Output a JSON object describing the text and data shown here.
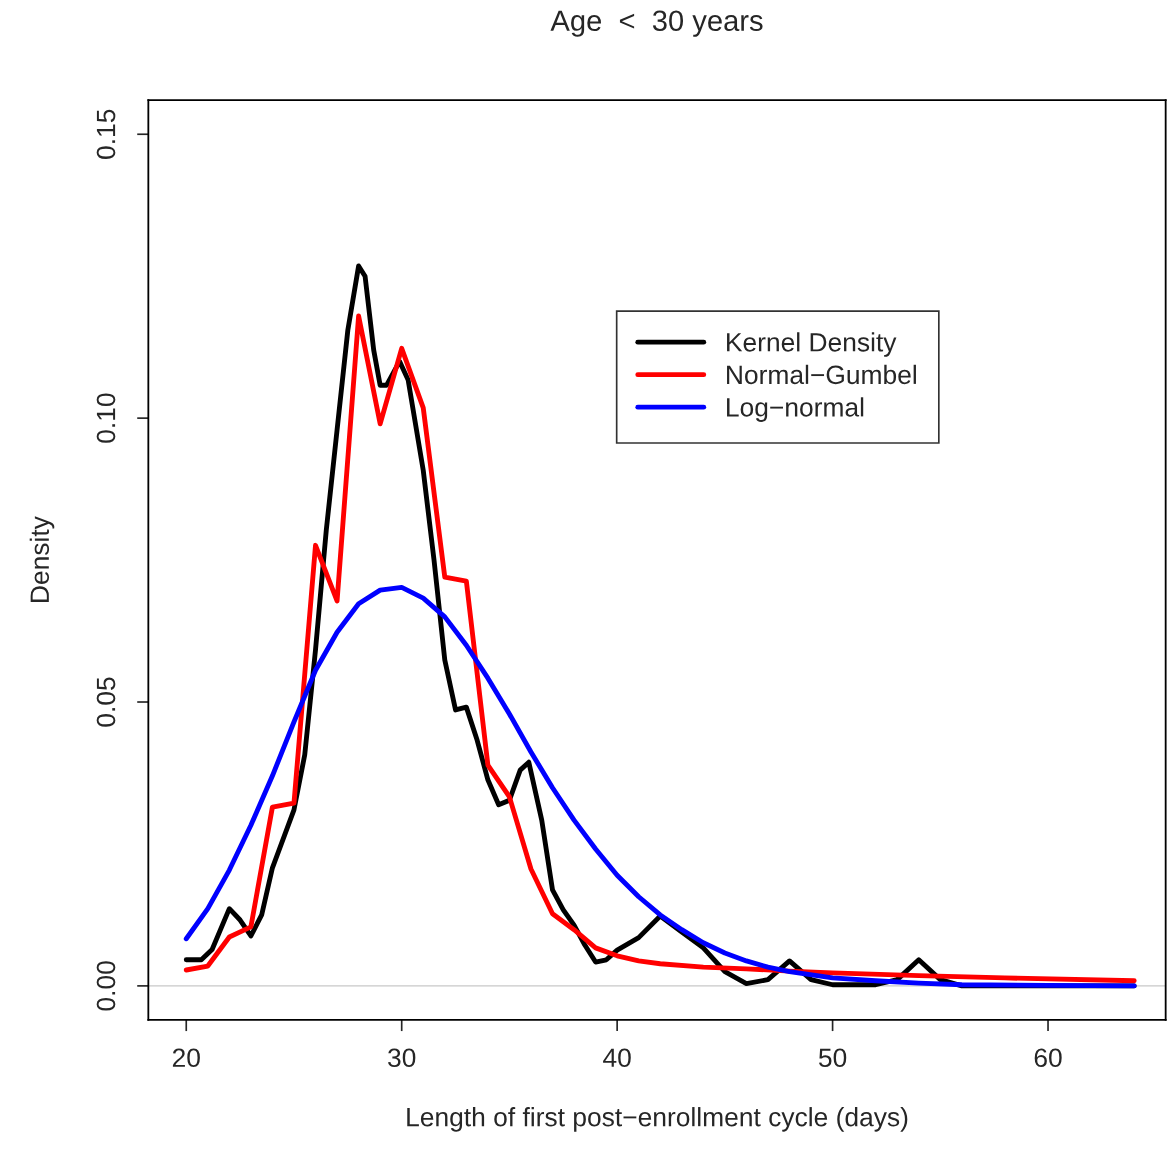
{
  "chart_data": {
    "type": "line",
    "title": "Age  <  30 years",
    "xlabel": "Length of first post−enrollment cycle (days)",
    "ylabel": "Density",
    "xlim": [
      18.24,
      65.46
    ],
    "ylim": [
      -0.006,
      0.156
    ],
    "xticks": [
      20,
      30,
      40,
      50,
      60
    ],
    "yticks": [
      {
        "value": 0,
        "label": "0.00"
      },
      {
        "value": 0.05,
        "label": "0.05"
      },
      {
        "value": 0.1,
        "label": "0.10"
      },
      {
        "value": 0.15,
        "label": "0.15"
      }
    ],
    "ref_lines": [
      {
        "axis": "y",
        "value": 0,
        "color": "#c8c8c8"
      }
    ],
    "legend": "top right",
    "grid": false,
    "marker": "none",
    "line_style": "solid",
    "series": [
      {
        "name": "Kernel Density",
        "color": "#000000",
        "x": [
          20,
          20.7,
          21.2,
          22,
          22.5,
          23,
          23.5,
          24,
          25,
          25.5,
          26,
          26.5,
          27,
          27.5,
          28,
          28.3,
          28.7,
          29,
          29.3,
          29.9,
          30.3,
          31,
          31.5,
          32,
          32.5,
          33,
          33.5,
          34,
          34.5,
          35,
          35.5,
          35.9,
          36.5,
          37,
          37.5,
          38,
          38.5,
          39,
          39.5,
          40,
          41,
          42,
          43,
          44,
          45,
          46,
          47,
          48,
          49,
          50,
          52,
          53,
          54,
          55,
          56,
          64
        ],
        "values": [
          0.0046,
          0.0046,
          0.0064,
          0.0136,
          0.0116,
          0.0088,
          0.0125,
          0.0208,
          0.031,
          0.0407,
          0.0592,
          0.0803,
          0.0979,
          0.1155,
          0.1268,
          0.125,
          0.112,
          0.1058,
          0.1058,
          0.11,
          0.1067,
          0.0908,
          0.075,
          0.0574,
          0.0486,
          0.0491,
          0.0433,
          0.0363,
          0.0319,
          0.0327,
          0.038,
          0.0394,
          0.0292,
          0.0169,
          0.0134,
          0.0107,
          0.0072,
          0.0042,
          0.0046,
          0.0063,
          0.0085,
          0.0123,
          0.0095,
          0.0067,
          0.0025,
          0.0004,
          0.0011,
          0.0044,
          0.0011,
          0.0002,
          0.0002,
          0.0011,
          0.0046,
          0.0011,
          0,
          0
        ]
      },
      {
        "name": "Normal−Gumbel",
        "color": "#ff0000",
        "x": [
          20,
          21,
          22,
          23,
          24,
          25,
          26,
          27,
          28,
          29,
          30,
          31,
          32,
          33,
          34,
          35,
          36,
          37,
          38,
          39,
          40,
          41,
          42,
          44,
          46,
          48,
          50,
          54,
          58,
          64
        ],
        "values": [
          0.0028,
          0.0035,
          0.0086,
          0.0104,
          0.0315,
          0.0322,
          0.0776,
          0.0678,
          0.118,
          0.099,
          0.1123,
          0.1018,
          0.072,
          0.0713,
          0.0389,
          0.0333,
          0.0206,
          0.0127,
          0.0099,
          0.0067,
          0.0053,
          0.0044,
          0.0039,
          0.0033,
          0.003,
          0.0026,
          0.0023,
          0.0018,
          0.0014,
          0.0009
        ]
      },
      {
        "name": "Log−normal",
        "color": "#0000ff",
        "x": [
          20,
          21,
          22,
          23,
          24,
          25,
          26,
          27,
          28,
          29,
          30,
          31,
          32,
          33,
          34,
          35,
          36,
          37,
          38,
          39,
          40,
          41,
          42,
          43,
          44,
          45,
          46,
          47,
          48,
          50,
          52,
          54,
          56,
          60,
          64
        ],
        "values": [
          0.0083,
          0.0136,
          0.0204,
          0.0283,
          0.037,
          0.0465,
          0.0556,
          0.0623,
          0.0673,
          0.0697,
          0.0702,
          0.0683,
          0.065,
          0.06,
          0.0542,
          0.0479,
          0.0412,
          0.0349,
          0.0292,
          0.0241,
          0.0195,
          0.0157,
          0.0125,
          0.0099,
          0.0076,
          0.0058,
          0.0044,
          0.0033,
          0.0025,
          0.0014,
          0.0009,
          0.0005,
          0.0002,
          0.0001,
          0
        ]
      }
    ]
  }
}
